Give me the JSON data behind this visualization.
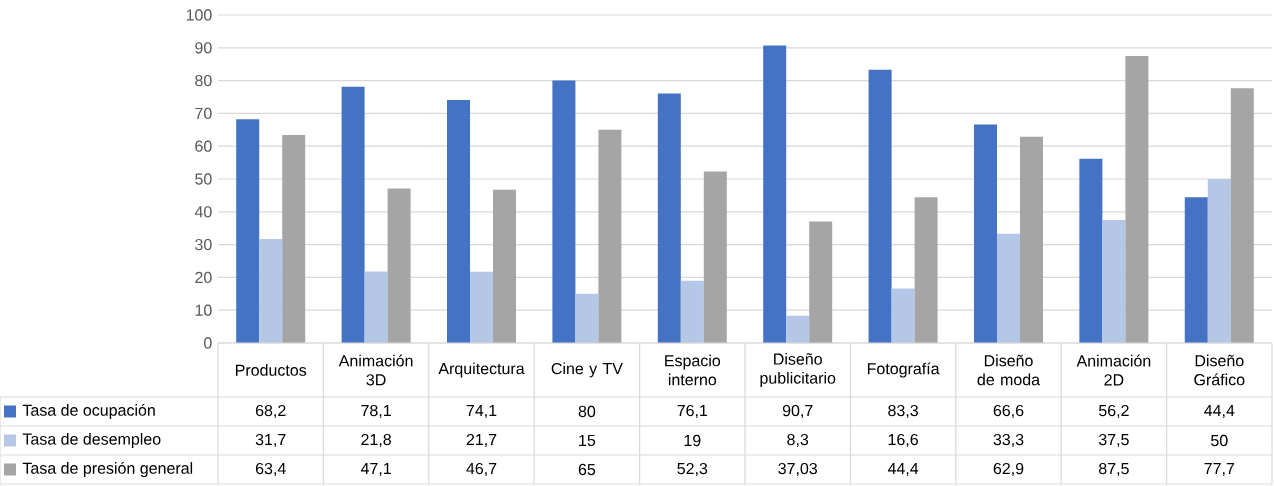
{
  "chart_data": {
    "type": "bar",
    "categories": [
      "Productos",
      "Animación 3D",
      "Arquitectura",
      "Cine y TV",
      "Espacio interno",
      "Diseño publicitario",
      "Fotografía",
      "Diseño de moda",
      "Animación 2D",
      "Diseño Gráfico"
    ],
    "series": [
      {
        "name": "Tasa de ocupación",
        "color": "#4472c4",
        "values": [
          68.2,
          78.1,
          74.1,
          80,
          76.1,
          90.7,
          83.3,
          66.6,
          56.2,
          44.4
        ],
        "value_labels": [
          "68,2",
          "78,1",
          "74,1",
          "80",
          "76,1",
          "90,7",
          "83,3",
          "66,6",
          "56,2",
          "44,4"
        ]
      },
      {
        "name": "Tasa de desempleo",
        "color": "#b4c7e7",
        "values": [
          31.7,
          21.8,
          21.7,
          15,
          19,
          8.3,
          16.6,
          33.3,
          37.5,
          50
        ],
        "value_labels": [
          "31,7",
          "21,8",
          "21,7",
          "15",
          "19",
          "8,3",
          "16,6",
          "33,3",
          "37,5",
          "50"
        ]
      },
      {
        "name": "Tasa de presión general",
        "color": "#a5a5a5",
        "values": [
          63.4,
          47.1,
          46.7,
          65,
          52.3,
          37.03,
          44.4,
          62.9,
          87.5,
          77.7
        ],
        "value_labels": [
          "63,4",
          "47,1",
          "46,7",
          "65",
          "52,3",
          "37,03",
          "44,4",
          "62,9",
          "87,5",
          "77,7"
        ]
      }
    ],
    "ylim": [
      0,
      100
    ],
    "yticks": [
      0,
      10,
      20,
      30,
      40,
      50,
      60,
      70,
      80,
      90,
      100
    ],
    "grid": "y",
    "legend": "bottom"
  }
}
